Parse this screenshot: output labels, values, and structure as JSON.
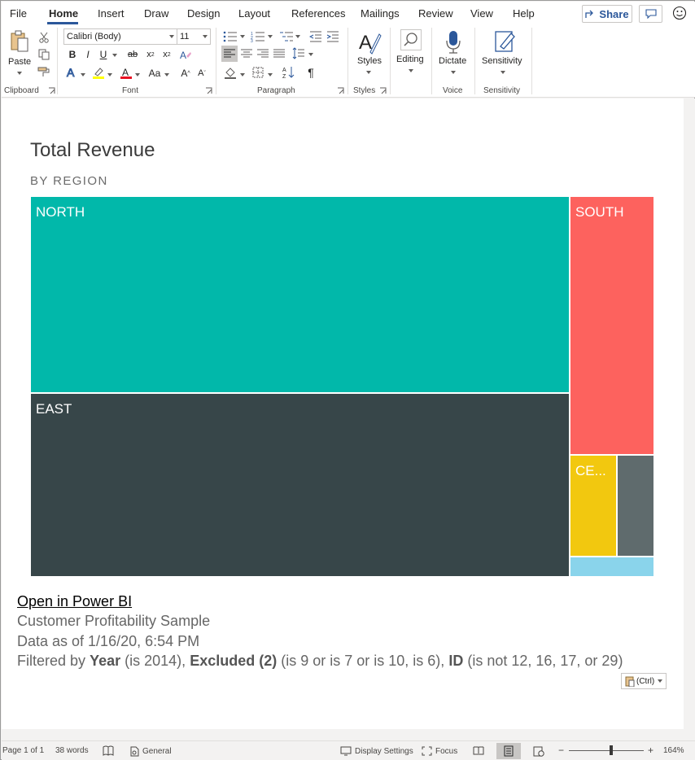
{
  "menu": {
    "tabs": [
      {
        "label": "File"
      },
      {
        "label": "Home"
      },
      {
        "label": "Insert"
      },
      {
        "label": "Draw"
      },
      {
        "label": "Design"
      },
      {
        "label": "Layout"
      },
      {
        "label": "References"
      },
      {
        "label": "Mailings"
      },
      {
        "label": "Review"
      },
      {
        "label": "View"
      },
      {
        "label": "Help"
      }
    ],
    "active_tab": "Home",
    "share_label": "Share"
  },
  "ribbon": {
    "clipboard": {
      "paste_label": "Paste",
      "group_label": "Clipboard"
    },
    "font": {
      "font_name": "Calibri (Body)",
      "font_size": "11",
      "group_label": "Font",
      "change_case_label": "Aa"
    },
    "paragraph": {
      "group_label": "Paragraph"
    },
    "styles": {
      "styles_label": "Styles",
      "group_label": "Styles"
    },
    "editing": {
      "editing_label": "Editing"
    },
    "voice": {
      "dictate_label": "Dictate",
      "group_label": "Voice"
    },
    "sensitivity": {
      "sensitivity_label": "Sensitivity",
      "group_label": "Sensitivity"
    }
  },
  "report": {
    "title": "Total Revenue",
    "subtitle": "BY REGION",
    "link_text": "Open in Power BI",
    "sample_name": "Customer Profitability Sample",
    "data_as_of": "Data as of 1/16/20, 6:54 PM",
    "filter": {
      "prefix": "Filtered by",
      "f1_name": "Year",
      "f1_cond": "(is 2014),",
      "f2_name": "Excluded (2)",
      "f2_cond": "(is 9 or is 7 or is 10, is 6),",
      "f3_name": "ID",
      "f3_cond": "(is not 12, 16, 17, or 29)"
    }
  },
  "chart_data": {
    "type": "treemap",
    "title": "Total Revenue",
    "subtitle": "BY REGION",
    "tiles": [
      {
        "label": "NORTH",
        "color": "#01b8aa"
      },
      {
        "label": "EAST",
        "color": "#374649"
      },
      {
        "label": "SOUTH",
        "color": "#fd625e"
      },
      {
        "label": "CE...",
        "color": "#f2c80f"
      },
      {
        "label": "",
        "color": "#5f6b6d"
      },
      {
        "label": "",
        "color": "#8ad4eb"
      }
    ]
  },
  "paste_options": {
    "label": "(Ctrl)"
  },
  "status": {
    "page": "Page 1 of 1",
    "words": "38 words",
    "language": "General",
    "display_settings": "Display Settings",
    "focus": "Focus",
    "zoom_minus": "−",
    "zoom_plus": "+",
    "zoom": "164%"
  },
  "colors": {
    "accent": "#2b579a"
  }
}
